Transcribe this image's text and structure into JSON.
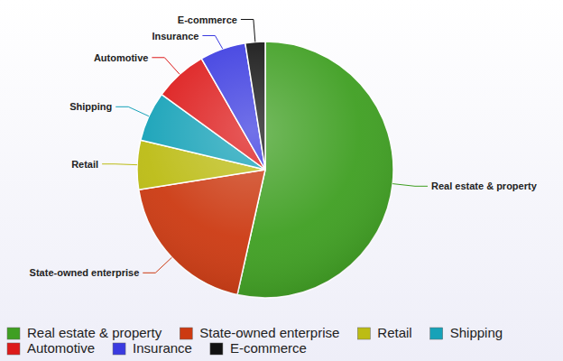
{
  "chart_data": {
    "type": "pie",
    "categories": [
      "Real estate & property",
      "State-owned enterprise",
      "Retail",
      "Shipping",
      "Automotive",
      "Insurance",
      "E-commerce"
    ],
    "values": [
      53.5,
      19,
      6.2,
      6.3,
      6.7,
      5.8,
      2.5
    ],
    "colors": [
      "#3f9f22",
      "#cc3a12",
      "#bcbc14",
      "#16a2b8",
      "#dd1a1a",
      "#3a3ae0",
      "#111111"
    ],
    "legend": "bottom"
  }
}
